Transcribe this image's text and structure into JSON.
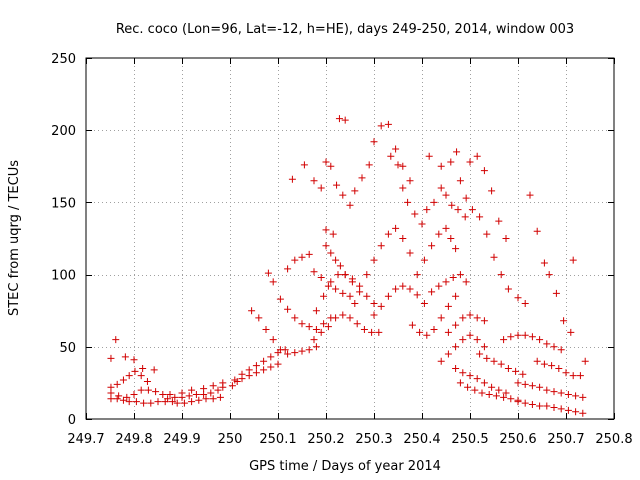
{
  "chart_data": {
    "type": "scatter",
    "title": "Rec. coco (Lon=96, Lat=-12, h=HE), days 249-250, 2014, window 003",
    "xlabel": "GPS time / Days of year 2014",
    "ylabel": "STEC from uqrg / TECUs",
    "xlim": [
      249.7,
      250.8
    ],
    "ylim": [
      0,
      250
    ],
    "xticks": [
      249.7,
      249.8,
      249.9,
      250.0,
      250.1,
      250.2,
      250.3,
      250.4,
      250.5,
      250.6,
      250.7,
      250.8
    ],
    "xtick_labels": [
      "249.7",
      "249.8",
      "249.9",
      "250",
      "250.1",
      "250.2",
      "250.3",
      "250.4",
      "250.5",
      "250.6",
      "250.7",
      "250.8"
    ],
    "yticks": [
      0,
      50,
      100,
      150,
      200,
      250
    ],
    "ytick_labels": [
      "0",
      "50",
      "100",
      "150",
      "200",
      "250"
    ],
    "grid": true,
    "marker": "+",
    "color": "#d10000",
    "series": [
      {
        "points": [
          [
            249.752,
            42
          ],
          [
            249.762,
            55
          ],
          [
            249.782,
            43
          ],
          [
            249.8,
            41
          ],
          [
            249.818,
            35
          ],
          [
            249.842,
            34
          ],
          [
            249.752,
            22
          ],
          [
            249.765,
            24
          ],
          [
            249.778,
            27
          ],
          [
            249.79,
            30
          ],
          [
            249.802,
            33
          ],
          [
            249.815,
            30
          ],
          [
            249.828,
            26
          ],
          [
            249.752,
            18
          ],
          [
            249.768,
            16
          ],
          [
            249.785,
            15
          ],
          [
            249.8,
            17
          ],
          [
            249.815,
            20
          ],
          [
            249.83,
            20
          ],
          [
            249.845,
            19
          ],
          [
            249.86,
            17
          ],
          [
            249.875,
            17
          ],
          [
            249.752,
            14
          ],
          [
            249.765,
            14
          ],
          [
            249.778,
            13
          ],
          [
            249.79,
            12
          ],
          [
            249.805,
            12
          ],
          [
            249.82,
            11
          ],
          [
            249.835,
            11
          ],
          [
            249.85,
            12
          ],
          [
            249.865,
            12
          ],
          [
            249.88,
            12
          ],
          [
            249.87,
            14
          ],
          [
            249.885,
            15
          ],
          [
            249.9,
            15
          ],
          [
            249.915,
            16
          ],
          [
            249.93,
            17
          ],
          [
            249.945,
            17
          ],
          [
            249.96,
            18
          ],
          [
            249.975,
            20
          ],
          [
            249.985,
            22
          ],
          [
            249.89,
            11
          ],
          [
            249.905,
            11
          ],
          [
            249.92,
            12
          ],
          [
            249.935,
            13
          ],
          [
            249.95,
            14
          ],
          [
            249.965,
            14
          ],
          [
            249.98,
            15
          ],
          [
            249.9,
            18
          ],
          [
            249.92,
            20
          ],
          [
            249.945,
            21
          ],
          [
            249.965,
            23
          ],
          [
            249.985,
            25
          ],
          [
            250.005,
            23
          ],
          [
            250.015,
            26
          ],
          [
            250.025,
            28
          ],
          [
            250.04,
            30
          ],
          [
            250.055,
            32
          ],
          [
            250.07,
            34
          ],
          [
            250.085,
            36
          ],
          [
            250.1,
            38
          ],
          [
            250.01,
            27
          ],
          [
            250.025,
            31
          ],
          [
            250.04,
            34
          ],
          [
            250.055,
            37
          ],
          [
            250.07,
            40
          ],
          [
            250.085,
            43
          ],
          [
            250.1,
            46
          ],
          [
            250.115,
            48
          ],
          [
            250.045,
            75
          ],
          [
            250.06,
            70
          ],
          [
            250.075,
            62
          ],
          [
            250.09,
            55
          ],
          [
            250.105,
            48
          ],
          [
            250.12,
            45
          ],
          [
            250.135,
            46
          ],
          [
            250.15,
            47
          ],
          [
            250.165,
            48
          ],
          [
            250.18,
            50
          ],
          [
            250.08,
            101
          ],
          [
            250.09,
            95
          ],
          [
            250.105,
            83
          ],
          [
            250.12,
            76
          ],
          [
            250.135,
            70
          ],
          [
            250.15,
            66
          ],
          [
            250.165,
            64
          ],
          [
            250.18,
            62
          ],
          [
            250.195,
            66
          ],
          [
            250.21,
            70
          ],
          [
            250.12,
            104
          ],
          [
            250.135,
            110
          ],
          [
            250.15,
            112
          ],
          [
            250.165,
            114
          ],
          [
            250.175,
            102
          ],
          [
            250.19,
            98
          ],
          [
            250.205,
            92
          ],
          [
            250.22,
            90
          ],
          [
            250.235,
            87
          ],
          [
            250.25,
            85
          ],
          [
            250.13,
            166
          ],
          [
            250.155,
            176
          ],
          [
            250.175,
            165
          ],
          [
            250.19,
            160
          ],
          [
            250.2,
            178
          ],
          [
            250.21,
            175
          ],
          [
            250.222,
            162
          ],
          [
            250.235,
            155
          ],
          [
            250.25,
            148
          ],
          [
            250.18,
            75
          ],
          [
            250.195,
            85
          ],
          [
            250.21,
            95
          ],
          [
            250.225,
            100
          ],
          [
            250.24,
            100
          ],
          [
            250.255,
            97
          ],
          [
            250.27,
            92
          ],
          [
            250.285,
            85
          ],
          [
            250.3,
            80
          ],
          [
            250.175,
            55
          ],
          [
            250.19,
            60
          ],
          [
            250.205,
            64
          ],
          [
            250.22,
            70
          ],
          [
            250.235,
            72
          ],
          [
            250.25,
            70
          ],
          [
            250.265,
            66
          ],
          [
            250.28,
            62
          ],
          [
            250.295,
            60
          ],
          [
            250.31,
            60
          ],
          [
            250.2,
            120
          ],
          [
            250.21,
            115
          ],
          [
            250.22,
            110
          ],
          [
            250.23,
            106
          ],
          [
            250.24,
            100
          ],
          [
            250.255,
            95
          ],
          [
            250.2,
            131
          ],
          [
            250.215,
            128
          ],
          [
            250.228,
            208
          ],
          [
            250.24,
            207
          ],
          [
            250.26,
            158
          ],
          [
            250.275,
            167
          ],
          [
            250.29,
            176
          ],
          [
            250.3,
            192
          ],
          [
            250.315,
            203
          ],
          [
            250.33,
            204
          ],
          [
            250.345,
            187
          ],
          [
            250.36,
            175
          ],
          [
            250.375,
            165
          ],
          [
            250.26,
            80
          ],
          [
            250.27,
            88
          ],
          [
            250.285,
            100
          ],
          [
            250.3,
            110
          ],
          [
            250.315,
            120
          ],
          [
            250.33,
            128
          ],
          [
            250.345,
            132
          ],
          [
            250.36,
            125
          ],
          [
            250.375,
            115
          ],
          [
            250.3,
            72
          ],
          [
            250.315,
            78
          ],
          [
            250.33,
            85
          ],
          [
            250.345,
            90
          ],
          [
            250.36,
            92
          ],
          [
            250.375,
            90
          ],
          [
            250.39,
            86
          ],
          [
            250.405,
            80
          ],
          [
            250.335,
            182
          ],
          [
            250.35,
            176
          ],
          [
            250.36,
            160
          ],
          [
            250.37,
            150
          ],
          [
            250.385,
            142
          ],
          [
            250.4,
            135
          ],
          [
            250.38,
            65
          ],
          [
            250.395,
            60
          ],
          [
            250.41,
            58
          ],
          [
            250.425,
            62
          ],
          [
            250.44,
            70
          ],
          [
            250.455,
            78
          ],
          [
            250.47,
            85
          ],
          [
            250.39,
            100
          ],
          [
            250.405,
            110
          ],
          [
            250.42,
            120
          ],
          [
            250.435,
            128
          ],
          [
            250.45,
            132
          ],
          [
            250.46,
            125
          ],
          [
            250.47,
            118
          ],
          [
            250.41,
            145
          ],
          [
            250.425,
            150
          ],
          [
            250.44,
            160
          ],
          [
            250.45,
            155
          ],
          [
            250.462,
            148
          ],
          [
            250.475,
            145
          ],
          [
            250.49,
            140
          ],
          [
            250.415,
            182
          ],
          [
            250.44,
            175
          ],
          [
            250.46,
            178
          ],
          [
            250.472,
            185
          ],
          [
            250.48,
            165
          ],
          [
            250.492,
            153
          ],
          [
            250.42,
            88
          ],
          [
            250.435,
            92
          ],
          [
            250.45,
            95
          ],
          [
            250.465,
            98
          ],
          [
            250.48,
            100
          ],
          [
            250.492,
            95
          ],
          [
            250.44,
            40
          ],
          [
            250.455,
            45
          ],
          [
            250.47,
            50
          ],
          [
            250.485,
            55
          ],
          [
            250.5,
            58
          ],
          [
            250.515,
            55
          ],
          [
            250.53,
            50
          ],
          [
            250.455,
            60
          ],
          [
            250.47,
            65
          ],
          [
            250.485,
            70
          ],
          [
            250.5,
            72
          ],
          [
            250.515,
            70
          ],
          [
            250.53,
            68
          ],
          [
            250.5,
            178
          ],
          [
            250.515,
            182
          ],
          [
            250.53,
            172
          ],
          [
            250.545,
            158
          ],
          [
            250.56,
            137
          ],
          [
            250.575,
            125
          ],
          [
            250.505,
            145
          ],
          [
            250.52,
            140
          ],
          [
            250.535,
            128
          ],
          [
            250.55,
            112
          ],
          [
            250.565,
            100
          ],
          [
            250.58,
            90
          ],
          [
            250.47,
            35
          ],
          [
            250.485,
            32
          ],
          [
            250.5,
            30
          ],
          [
            250.515,
            28
          ],
          [
            250.53,
            25
          ],
          [
            250.545,
            22
          ],
          [
            250.56,
            20
          ],
          [
            250.575,
            18
          ],
          [
            250.48,
            25
          ],
          [
            250.495,
            22
          ],
          [
            250.51,
            20
          ],
          [
            250.525,
            18
          ],
          [
            250.54,
            17
          ],
          [
            250.555,
            16
          ],
          [
            250.57,
            15
          ],
          [
            250.585,
            14
          ],
          [
            250.6,
            13
          ],
          [
            250.52,
            45
          ],
          [
            250.535,
            42
          ],
          [
            250.55,
            40
          ],
          [
            250.565,
            38
          ],
          [
            250.58,
            35
          ],
          [
            250.595,
            33
          ],
          [
            250.61,
            31
          ],
          [
            250.6,
            84
          ],
          [
            250.615,
            80
          ],
          [
            250.625,
            155
          ],
          [
            250.64,
            130
          ],
          [
            250.655,
            108
          ],
          [
            250.665,
            100
          ],
          [
            250.68,
            87
          ],
          [
            250.695,
            68
          ],
          [
            250.71,
            60
          ],
          [
            250.715,
            110
          ],
          [
            250.57,
            55
          ],
          [
            250.585,
            57
          ],
          [
            250.6,
            58
          ],
          [
            250.615,
            58
          ],
          [
            250.63,
            57
          ],
          [
            250.645,
            55
          ],
          [
            250.66,
            52
          ],
          [
            250.675,
            50
          ],
          [
            250.69,
            48
          ],
          [
            250.6,
            25
          ],
          [
            250.615,
            24
          ],
          [
            250.63,
            23
          ],
          [
            250.645,
            22
          ],
          [
            250.66,
            20
          ],
          [
            250.675,
            19
          ],
          [
            250.69,
            18
          ],
          [
            250.705,
            17
          ],
          [
            250.72,
            16
          ],
          [
            250.735,
            15
          ],
          [
            250.6,
            12
          ],
          [
            250.615,
            11
          ],
          [
            250.63,
            10
          ],
          [
            250.645,
            9
          ],
          [
            250.66,
            9
          ],
          [
            250.675,
            8
          ],
          [
            250.69,
            7
          ],
          [
            250.705,
            6
          ],
          [
            250.72,
            5
          ],
          [
            250.735,
            4
          ],
          [
            250.64,
            40
          ],
          [
            250.655,
            38
          ],
          [
            250.67,
            37
          ],
          [
            250.685,
            35
          ],
          [
            250.7,
            32
          ],
          [
            250.715,
            30
          ],
          [
            250.73,
            30
          ],
          [
            250.74,
            40
          ]
        ]
      }
    ]
  }
}
